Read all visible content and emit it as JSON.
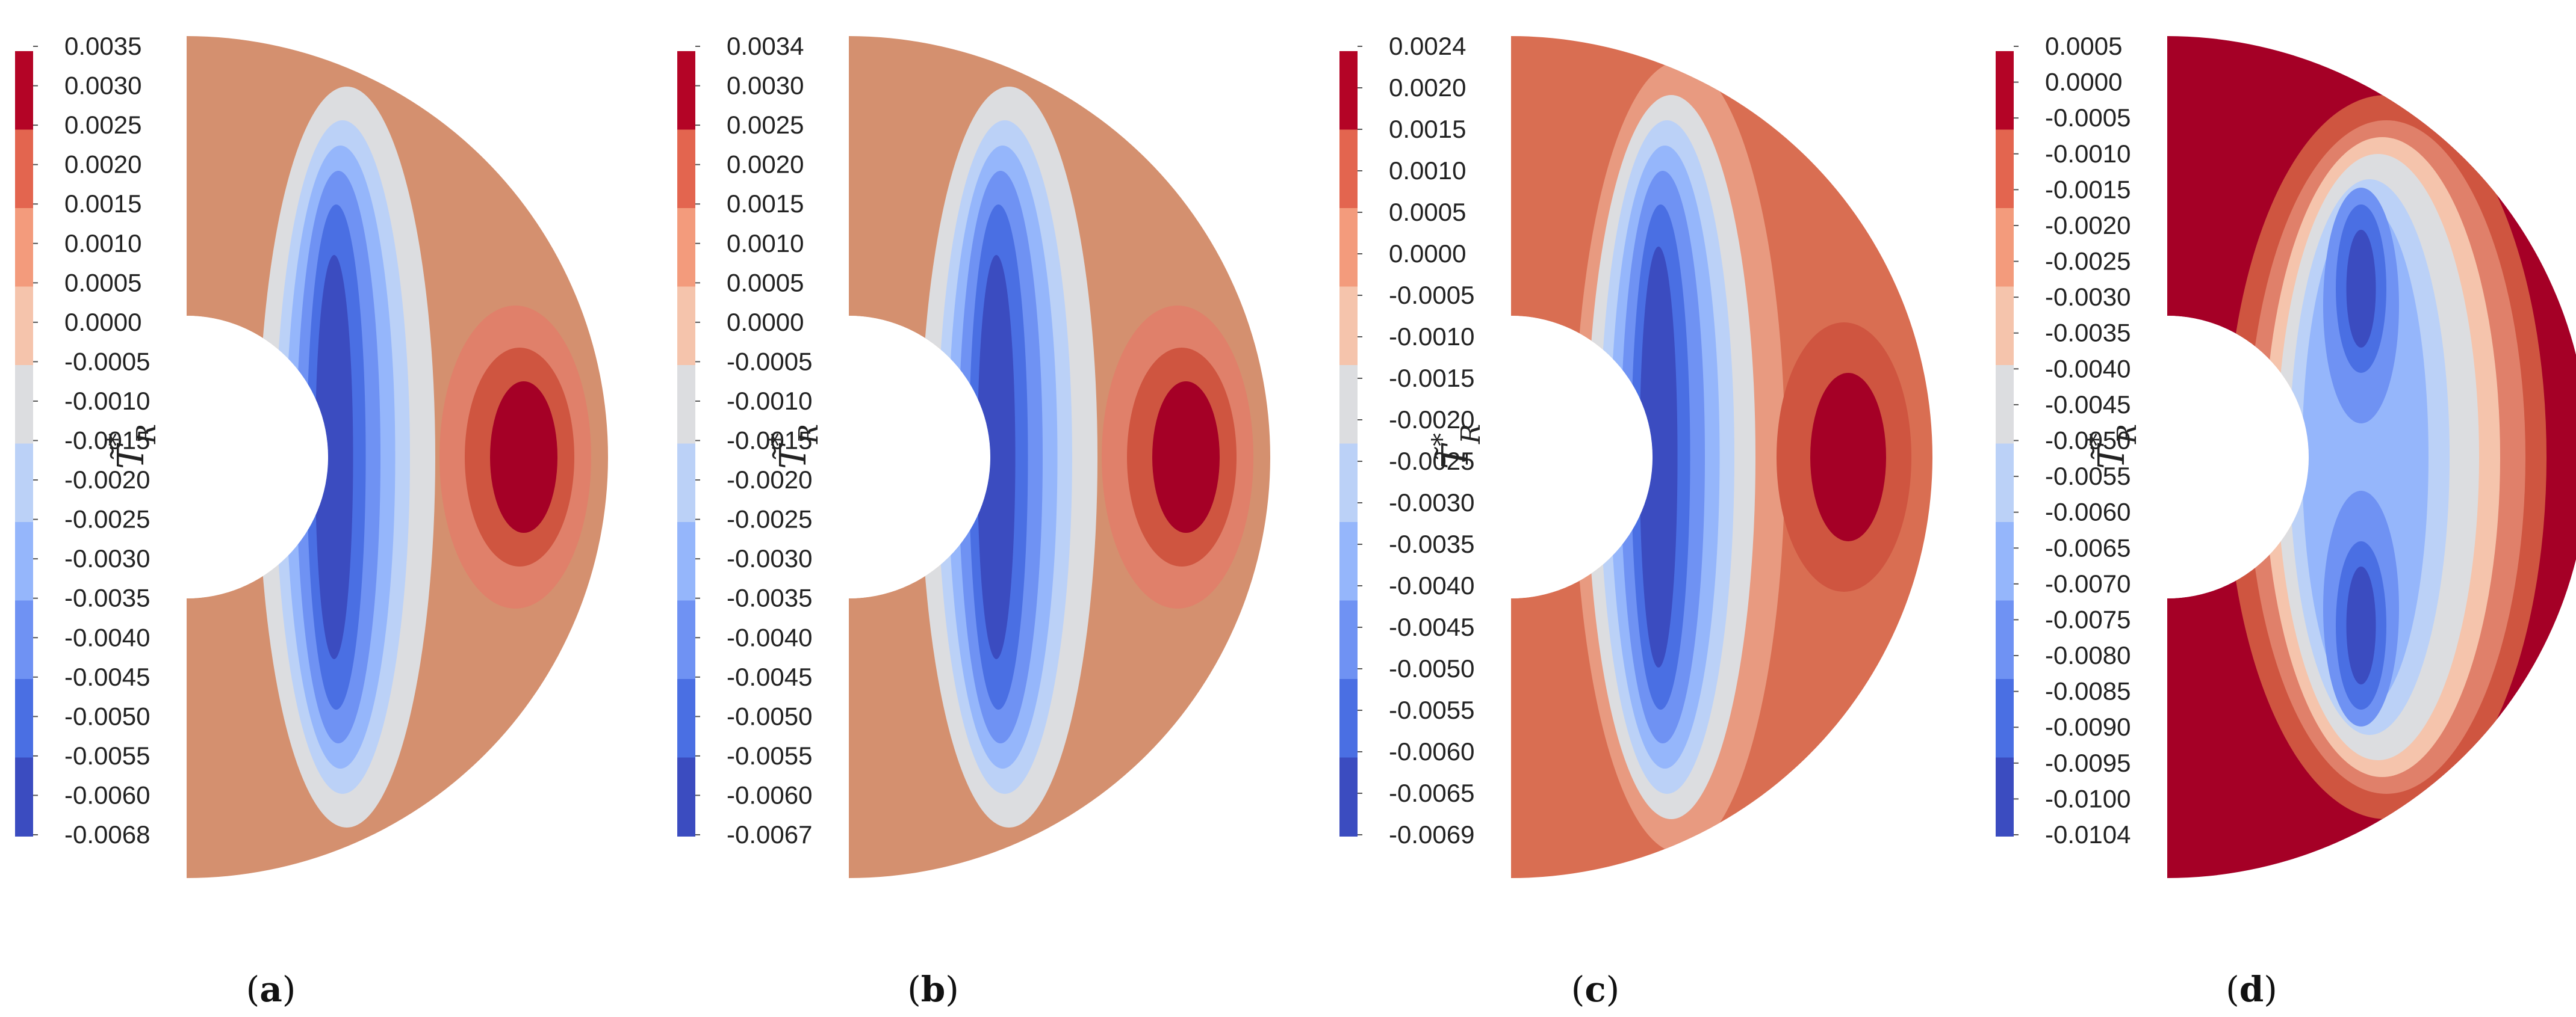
{
  "figure": {
    "colormap": [
      "#3b4cc0",
      "#4a6fe3",
      "#6f92f3",
      "#95b6fb",
      "#bbd1f7",
      "#dcdde0",
      "#f5c4ac",
      "#f39b7c",
      "#e3654f",
      "#b40426"
    ],
    "inner_cut_color": "#ffffff"
  },
  "chart_data": [
    {
      "type": "heatmap",
      "panel_label": "a",
      "colorbar_title": {
        "symbol": "T̃",
        "superscript": "*",
        "subscript": "R"
      },
      "colorbar_ticks": [
        "0.0035",
        "0.0030",
        "0.0025",
        "0.0020",
        "0.0015",
        "0.0010",
        "0.0005",
        "0.0000",
        "-0.0005",
        "-0.0010",
        "-0.0015",
        "-0.0020",
        "-0.0025",
        "-0.0030",
        "-0.0035",
        "-0.0040",
        "-0.0045",
        "-0.0050",
        "-0.0055",
        "-0.0060",
        "-0.0068"
      ],
      "range": [
        -0.0068,
        0.0035
      ],
      "field": {
        "background": "#d4906f",
        "blobs": [
          {
            "color": "#dcdde0",
            "cx": 0.38,
            "cy": 0.5,
            "rx": 0.21,
            "ry": 0.44
          },
          {
            "color": "#bbd1f7",
            "cx": 0.37,
            "cy": 0.5,
            "rx": 0.16,
            "ry": 0.4
          },
          {
            "color": "#95b6fb",
            "cx": 0.365,
            "cy": 0.5,
            "rx": 0.13,
            "ry": 0.37
          },
          {
            "color": "#6f92f3",
            "cx": 0.36,
            "cy": 0.5,
            "rx": 0.1,
            "ry": 0.34
          },
          {
            "color": "#4a6fe3",
            "cx": 0.355,
            "cy": 0.5,
            "rx": 0.07,
            "ry": 0.3
          },
          {
            "color": "#3b4cc0",
            "cx": 0.35,
            "cy": 0.5,
            "rx": 0.045,
            "ry": 0.24
          },
          {
            "color": "#e0806a",
            "cx": 0.78,
            "cy": 0.5,
            "rx": 0.18,
            "ry": 0.18
          },
          {
            "color": "#cf5540",
            "cx": 0.79,
            "cy": 0.5,
            "rx": 0.13,
            "ry": 0.13
          },
          {
            "color": "#a50026",
            "cx": 0.8,
            "cy": 0.5,
            "rx": 0.08,
            "ry": 0.09
          }
        ]
      }
    },
    {
      "type": "heatmap",
      "panel_label": "b",
      "colorbar_title": {
        "symbol": "T̃",
        "superscript": "*",
        "subscript": "R"
      },
      "colorbar_ticks": [
        "0.0034",
        "0.0030",
        "0.0025",
        "0.0020",
        "0.0015",
        "0.0010",
        "0.0005",
        "0.0000",
        "-0.0005",
        "-0.0010",
        "-0.0015",
        "-0.0020",
        "-0.0025",
        "-0.0030",
        "-0.0035",
        "-0.0040",
        "-0.0045",
        "-0.0050",
        "-0.0055",
        "-0.0060",
        "-0.0067"
      ],
      "range": [
        -0.0067,
        0.0034
      ],
      "field": {
        "background": "#d4906f",
        "blobs": [
          {
            "color": "#dcdde0",
            "cx": 0.38,
            "cy": 0.5,
            "rx": 0.21,
            "ry": 0.44
          },
          {
            "color": "#bbd1f7",
            "cx": 0.37,
            "cy": 0.5,
            "rx": 0.16,
            "ry": 0.4
          },
          {
            "color": "#95b6fb",
            "cx": 0.365,
            "cy": 0.5,
            "rx": 0.13,
            "ry": 0.37
          },
          {
            "color": "#6f92f3",
            "cx": 0.36,
            "cy": 0.5,
            "rx": 0.1,
            "ry": 0.34
          },
          {
            "color": "#4a6fe3",
            "cx": 0.355,
            "cy": 0.5,
            "rx": 0.07,
            "ry": 0.3
          },
          {
            "color": "#3b4cc0",
            "cx": 0.35,
            "cy": 0.5,
            "rx": 0.045,
            "ry": 0.24
          },
          {
            "color": "#e0806a",
            "cx": 0.78,
            "cy": 0.5,
            "rx": 0.18,
            "ry": 0.18
          },
          {
            "color": "#cf5540",
            "cx": 0.79,
            "cy": 0.5,
            "rx": 0.13,
            "ry": 0.13
          },
          {
            "color": "#a50026",
            "cx": 0.8,
            "cy": 0.5,
            "rx": 0.08,
            "ry": 0.09
          }
        ]
      }
    },
    {
      "type": "heatmap",
      "panel_label": "c",
      "colorbar_title": {
        "symbol": "T̃",
        "superscript": "*",
        "subscript": "R"
      },
      "colorbar_ticks": [
        "0.0024",
        "0.0020",
        "0.0015",
        "0.0010",
        "0.0005",
        "0.0000",
        "-0.0005",
        "-0.0010",
        "-0.0015",
        "-0.0020",
        "-0.0025",
        "-0.0030",
        "-0.0035",
        "-0.0040",
        "-0.0045",
        "-0.0050",
        "-0.0055",
        "-0.0060",
        "-0.0065",
        "-0.0069"
      ],
      "range": [
        -0.0069,
        0.0024
      ],
      "field": {
        "background": "#d96e52",
        "blobs": [
          {
            "color": "#e89a80",
            "cx": 0.4,
            "cy": 0.5,
            "rx": 0.25,
            "ry": 0.47
          },
          {
            "color": "#dcdde0",
            "cx": 0.38,
            "cy": 0.5,
            "rx": 0.2,
            "ry": 0.43
          },
          {
            "color": "#bbd1f7",
            "cx": 0.37,
            "cy": 0.5,
            "rx": 0.16,
            "ry": 0.4
          },
          {
            "color": "#95b6fb",
            "cx": 0.365,
            "cy": 0.5,
            "rx": 0.13,
            "ry": 0.37
          },
          {
            "color": "#6f92f3",
            "cx": 0.36,
            "cy": 0.5,
            "rx": 0.1,
            "ry": 0.34
          },
          {
            "color": "#4a6fe3",
            "cx": 0.355,
            "cy": 0.5,
            "rx": 0.07,
            "ry": 0.3
          },
          {
            "color": "#3b4cc0",
            "cx": 0.35,
            "cy": 0.5,
            "rx": 0.045,
            "ry": 0.25
          },
          {
            "color": "#cf5540",
            "cx": 0.79,
            "cy": 0.5,
            "rx": 0.16,
            "ry": 0.16
          },
          {
            "color": "#a50026",
            "cx": 0.8,
            "cy": 0.5,
            "rx": 0.09,
            "ry": 0.1
          }
        ]
      }
    },
    {
      "type": "heatmap",
      "panel_label": "d",
      "colorbar_title": {
        "symbol": "T̃",
        "superscript": "*",
        "subscript": "R"
      },
      "colorbar_ticks": [
        "0.0005",
        "0.0000",
        "-0.0005",
        "-0.0010",
        "-0.0015",
        "-0.0020",
        "-0.0025",
        "-0.0030",
        "-0.0035",
        "-0.0040",
        "-0.0045",
        "-0.0050",
        "-0.0055",
        "-0.0060",
        "-0.0065",
        "-0.0070",
        "-0.0075",
        "-0.0080",
        "-0.0085",
        "-0.0090",
        "-0.0095",
        "-0.0100",
        "-0.0104"
      ],
      "range": [
        -0.0104,
        0.0005
      ],
      "field": {
        "background": "#a50026",
        "blobs": [
          {
            "color": "#cf5540",
            "cx": 0.52,
            "cy": 0.5,
            "rx": 0.38,
            "ry": 0.43
          },
          {
            "color": "#e0806a",
            "cx": 0.52,
            "cy": 0.5,
            "rx": 0.33,
            "ry": 0.4
          },
          {
            "color": "#f5c4ac",
            "cx": 0.51,
            "cy": 0.5,
            "rx": 0.28,
            "ry": 0.38
          },
          {
            "color": "#dcdde0",
            "cx": 0.5,
            "cy": 0.5,
            "rx": 0.24,
            "ry": 0.36
          },
          {
            "color": "#bbd1f7",
            "cx": 0.48,
            "cy": 0.5,
            "rx": 0.19,
            "ry": 0.33
          },
          {
            "color": "#95b6fb",
            "cx": 0.47,
            "cy": 0.5,
            "rx": 0.15,
            "ry": 0.3
          },
          {
            "color": "#6f92f3",
            "cx": 0.46,
            "cy": 0.32,
            "rx": 0.09,
            "ry": 0.14
          },
          {
            "color": "#6f92f3",
            "cx": 0.46,
            "cy": 0.68,
            "rx": 0.09,
            "ry": 0.14
          },
          {
            "color": "#4a6fe3",
            "cx": 0.46,
            "cy": 0.3,
            "rx": 0.06,
            "ry": 0.1
          },
          {
            "color": "#4a6fe3",
            "cx": 0.46,
            "cy": 0.7,
            "rx": 0.06,
            "ry": 0.1
          },
          {
            "color": "#3b4cc0",
            "cx": 0.46,
            "cy": 0.3,
            "rx": 0.035,
            "ry": 0.07
          },
          {
            "color": "#3b4cc0",
            "cx": 0.46,
            "cy": 0.7,
            "rx": 0.035,
            "ry": 0.07
          }
        ]
      }
    }
  ]
}
